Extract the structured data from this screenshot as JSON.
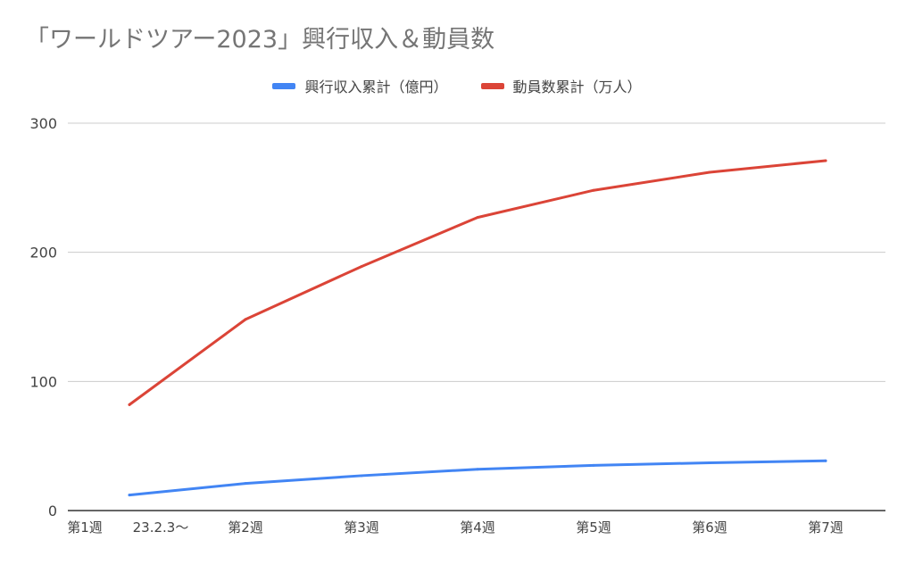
{
  "chart_data": {
    "type": "line",
    "title": "「ワールドツアー2023」興行収入＆動員数",
    "categories": [
      "第1週　23.2.3〜",
      "第2週",
      "第3週",
      "第4週",
      "第5週",
      "第6週",
      "第7週"
    ],
    "category_labels": [
      "第1週",
      "23.2.3〜",
      "第2週",
      "第3週",
      "第4週",
      "第5週",
      "第6週",
      "第7週"
    ],
    "series": [
      {
        "name": "興行収入累計（億円）",
        "color": "#4285f4",
        "values": [
          12,
          21,
          27,
          32,
          35,
          37,
          38.5
        ]
      },
      {
        "name": "動員数累計（万人）",
        "color": "#db4437",
        "values": [
          82,
          148,
          189,
          227,
          248,
          262,
          271
        ]
      }
    ],
    "ylim": [
      0,
      300
    ],
    "yticks": [
      0,
      100,
      200,
      300
    ],
    "grid": true,
    "legend_position": "top"
  }
}
